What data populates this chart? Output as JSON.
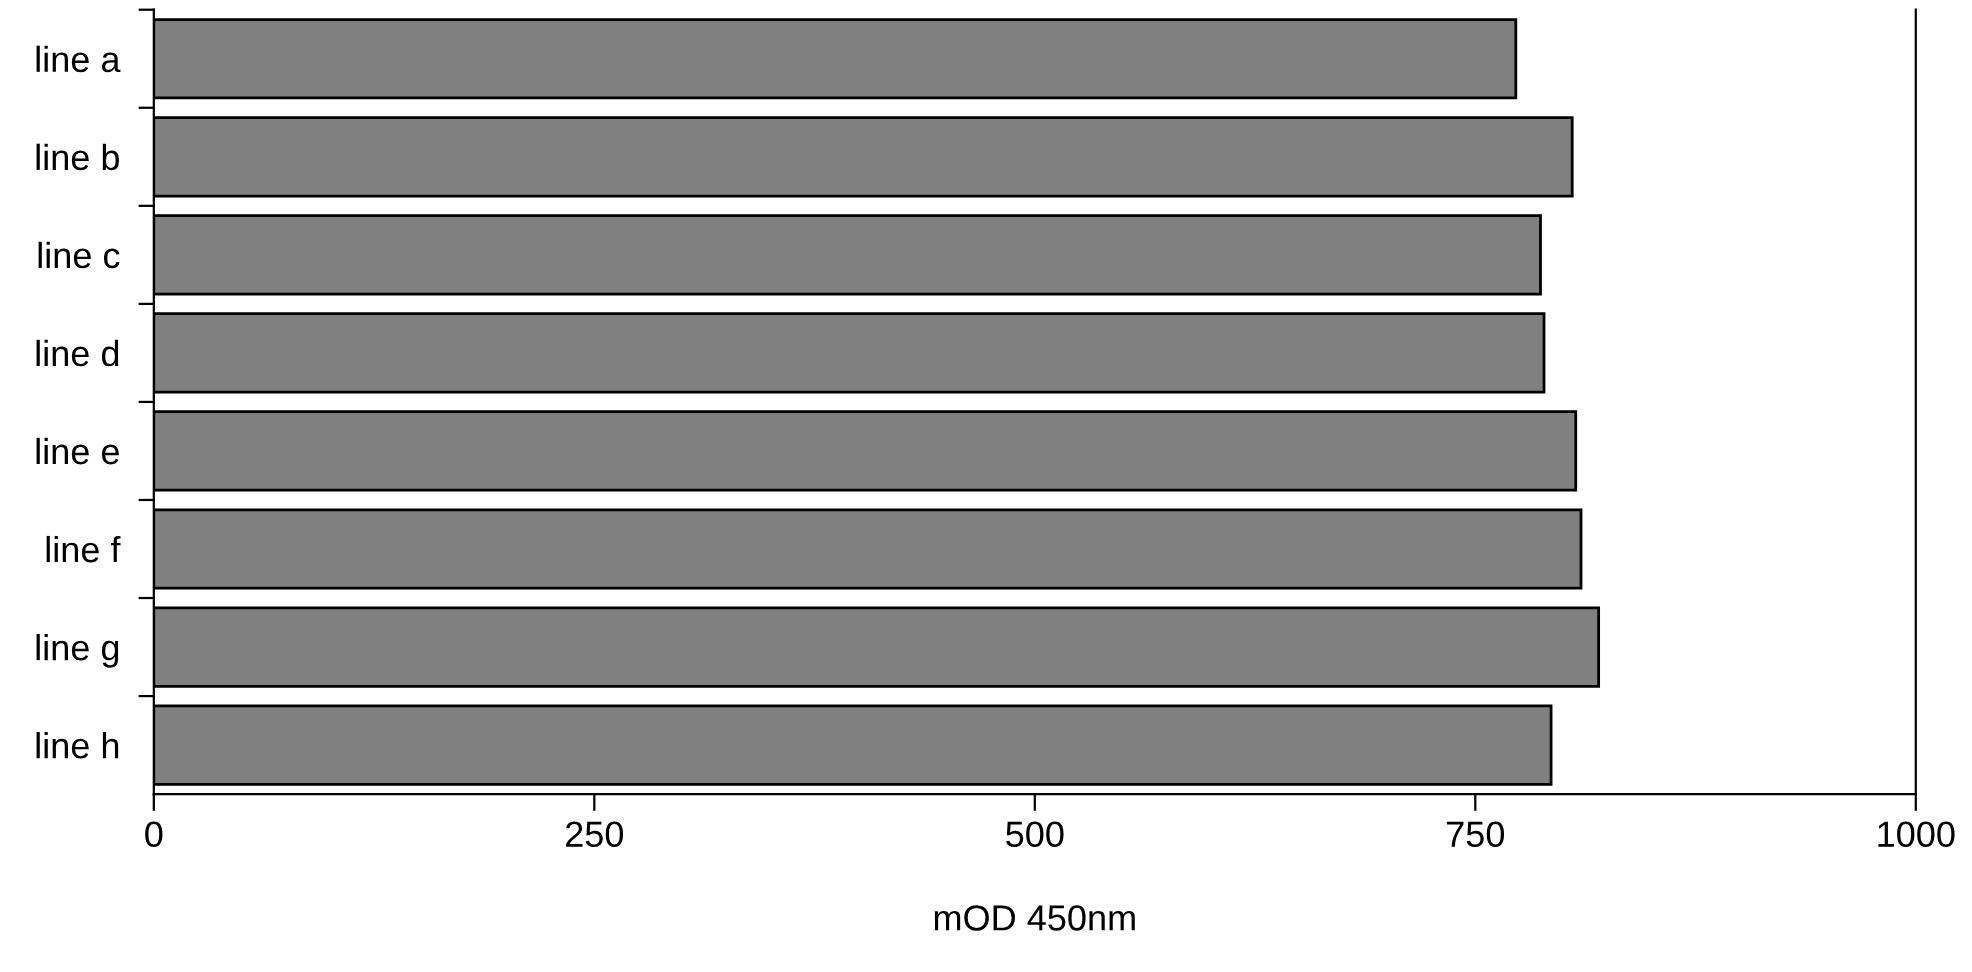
{
  "chart_data": {
    "type": "bar",
    "orientation": "horizontal",
    "xlabel": "mOD 450nm",
    "categories": [
      "line a",
      "line b",
      "line c",
      "line d",
      "line e",
      "line f",
      "line g",
      "line h"
    ],
    "values": [
      773,
      805,
      787,
      789,
      807,
      810,
      820,
      793
    ],
    "color": "#808080",
    "xlim": [
      0,
      1000
    ],
    "xticks": [
      0,
      250,
      500,
      750,
      1000
    ],
    "grid": false,
    "legend": false
  }
}
